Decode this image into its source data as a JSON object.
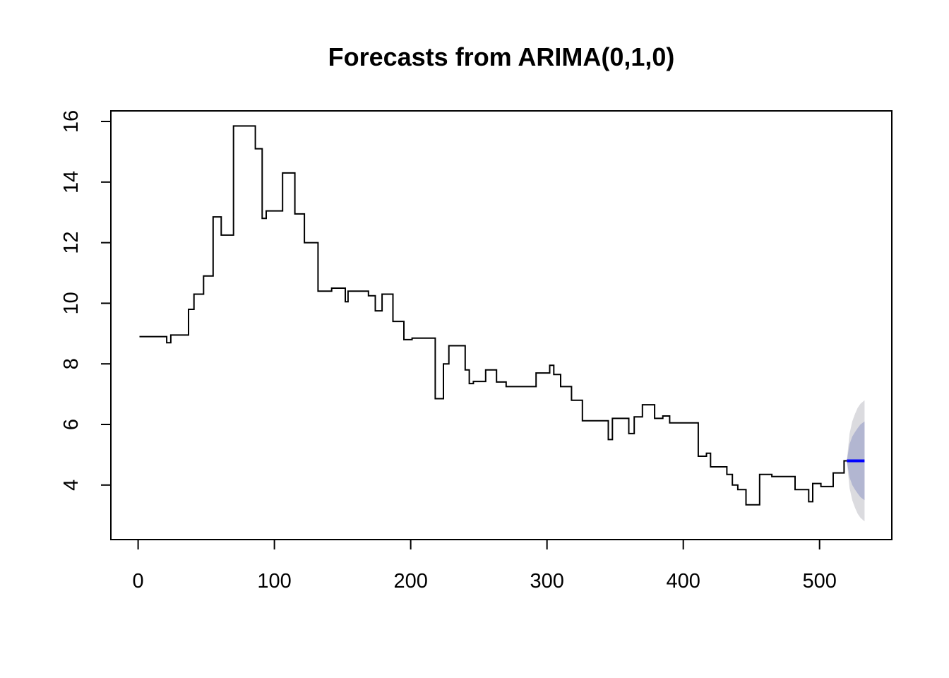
{
  "chart_data": {
    "type": "line",
    "title": "Forecasts from ARIMA(0,1,0)",
    "xlabel": "",
    "ylabel": "",
    "xlim": [
      -20,
      553
    ],
    "ylim": [
      2.2,
      16.35
    ],
    "x_ticks": [
      0,
      100,
      200,
      300,
      400,
      500
    ],
    "x_tick_labels": [
      "0",
      "100",
      "200",
      "300",
      "400",
      "500"
    ],
    "y_ticks": [
      4,
      6,
      8,
      10,
      12,
      14,
      16
    ],
    "y_tick_labels": [
      "4",
      "6",
      "8",
      "10",
      "12",
      "14",
      "16"
    ],
    "grid": false,
    "legend": "none",
    "series": [
      {
        "role": "observed",
        "color": "#000000",
        "step": true,
        "points": [
          [
            1,
            8.9
          ],
          [
            21,
            8.7
          ],
          [
            24,
            8.95
          ],
          [
            37,
            9.8
          ],
          [
            41,
            10.3
          ],
          [
            48,
            10.9
          ],
          [
            55,
            12.85
          ],
          [
            61,
            12.25
          ],
          [
            70,
            15.85
          ],
          [
            86,
            15.1
          ],
          [
            91,
            12.8
          ],
          [
            94,
            13.05
          ],
          [
            106,
            14.3
          ],
          [
            115,
            12.95
          ],
          [
            122,
            12.0
          ],
          [
            132,
            10.4
          ],
          [
            142,
            10.5
          ],
          [
            152,
            10.05
          ],
          [
            154,
            10.4
          ],
          [
            169,
            10.25
          ],
          [
            174,
            9.75
          ],
          [
            179,
            10.3
          ],
          [
            187,
            9.4
          ],
          [
            195,
            8.8
          ],
          [
            201,
            8.85
          ],
          [
            218,
            6.85
          ],
          [
            224,
            8.0
          ],
          [
            228,
            8.6
          ],
          [
            240,
            7.8
          ],
          [
            243,
            7.35
          ],
          [
            246,
            7.42
          ],
          [
            255,
            7.8
          ],
          [
            263,
            7.4
          ],
          [
            270,
            7.25
          ],
          [
            292,
            7.7
          ],
          [
            302,
            7.95
          ],
          [
            305,
            7.65
          ],
          [
            310,
            7.25
          ],
          [
            318,
            6.8
          ],
          [
            326,
            6.12
          ],
          [
            345,
            5.5
          ],
          [
            348,
            6.2
          ],
          [
            360,
            5.7
          ],
          [
            364,
            6.25
          ],
          [
            370,
            6.65
          ],
          [
            379,
            6.2
          ],
          [
            385,
            6.28
          ],
          [
            390,
            6.05
          ],
          [
            411,
            4.95
          ],
          [
            417,
            5.05
          ],
          [
            420,
            4.6
          ],
          [
            432,
            4.35
          ],
          [
            436,
            4.0
          ],
          [
            440,
            3.85
          ],
          [
            446,
            3.35
          ],
          [
            456,
            4.35
          ],
          [
            465,
            4.28
          ],
          [
            482,
            3.85
          ],
          [
            492,
            3.45
          ],
          [
            495,
            4.05
          ],
          [
            501,
            3.95
          ],
          [
            510,
            4.4
          ],
          [
            518,
            4.8
          ],
          [
            520,
            4.8
          ]
        ]
      },
      {
        "role": "forecast",
        "color": "#0000FF",
        "x": [
          520,
          533
        ],
        "values": [
          4.8,
          4.8
        ]
      }
    ],
    "intervals": [
      {
        "level": 95,
        "color": "#DBDBDF",
        "x": [
          520,
          522,
          524,
          526,
          528,
          530,
          533
        ],
        "lower": [
          4.8,
          3.9,
          3.5,
          3.25,
          3.05,
          2.92,
          2.8
        ],
        "upper": [
          4.8,
          5.7,
          6.1,
          6.35,
          6.55,
          6.68,
          6.8
        ]
      },
      {
        "level": 80,
        "color": "#B2B6D1",
        "x": [
          520,
          522,
          524,
          526,
          528,
          530,
          533
        ],
        "lower": [
          4.8,
          4.25,
          4.0,
          3.85,
          3.72,
          3.6,
          3.5
        ],
        "upper": [
          4.8,
          5.35,
          5.6,
          5.75,
          5.88,
          6.0,
          6.1
        ]
      }
    ]
  }
}
